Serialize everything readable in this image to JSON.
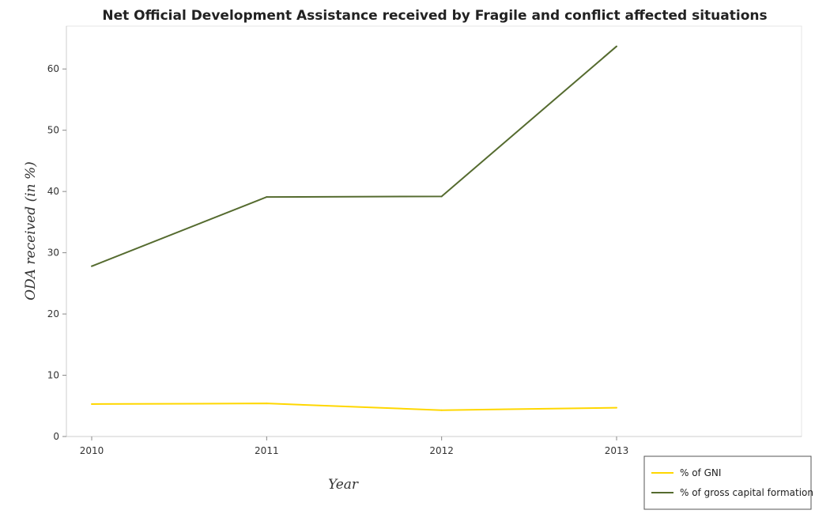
{
  "chart_data": {
    "type": "line",
    "title": "Net Official Development Assistance received by Fragile and conflict affected situations",
    "xlabel": "Year",
    "ylabel": "ODA received (in %)",
    "categories": [
      "2010",
      "2011",
      "2012",
      "2013"
    ],
    "ylim": [
      0,
      67
    ],
    "yticks": [
      0,
      10,
      20,
      30,
      40,
      50,
      60
    ],
    "ytick_labels": [
      "0",
      "10",
      "20",
      "30",
      "40",
      "50",
      "60"
    ],
    "grid": false,
    "legend_position": "bottom-right",
    "series": [
      {
        "name": "% of GNI",
        "color": "#FFD700",
        "values": [
          5.3,
          5.4,
          4.3,
          4.7
        ]
      },
      {
        "name": "% of gross capital formation",
        "color": "#556B2F",
        "values": [
          27.8,
          39.1,
          39.2,
          63.7
        ]
      }
    ]
  }
}
